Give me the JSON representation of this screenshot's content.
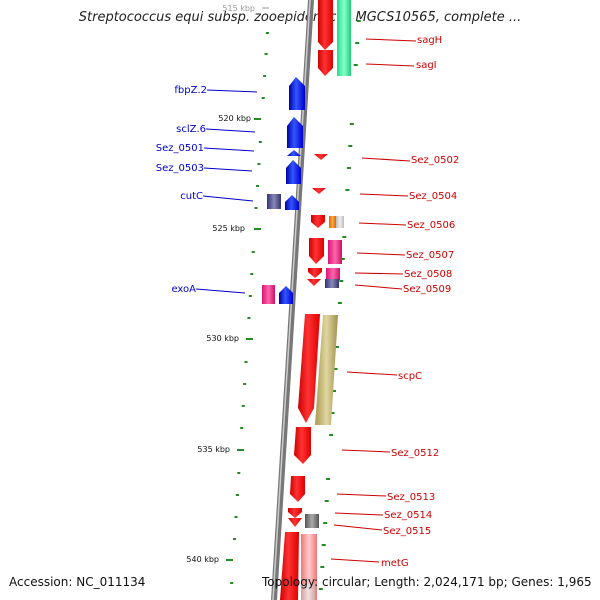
{
  "title": "Streptococcus equi subsp. zooepidemicus MGCS10565, complete ...",
  "footer": {
    "accession": "Accession: NC_011134",
    "topology": "Topology: circular; Length: 2,024,171 bp; Genes: 1,965"
  },
  "colors": {
    "forward_cds": "#0000ee",
    "reverse_cds": "#ee0000",
    "axis": "#888888",
    "scale_dots": "#228b22",
    "left_label": "#0000cc",
    "right_label": "#cc0000"
  },
  "scale_ticks": [
    "515 kbp",
    "520 kbp",
    "525 kbp",
    "530 kbp",
    "535 kbp",
    "540 kbp"
  ],
  "left_genes": [
    "fbpZ.2",
    "sclZ.6",
    "Sez_0501",
    "Sez_0503",
    "cutC",
    "exoA"
  ],
  "right_genes": [
    "sagH",
    "sagI",
    "Sez_0502",
    "Sez_0504",
    "Sez_0506",
    "Sez_0507",
    "Sez_0508",
    "Sez_0509",
    "scpC",
    "Sez_0512",
    "Sez_0513",
    "Sez_0514",
    "Sez_0515",
    "metG"
  ]
}
